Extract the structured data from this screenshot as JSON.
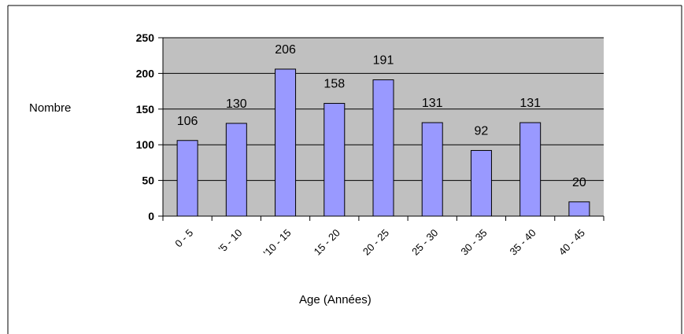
{
  "chart_data": {
    "type": "bar",
    "title": "",
    "ylabel": "Nombre",
    "xlabel": "Age (Années)",
    "categories": [
      "0 - 5",
      "'5 - 10",
      "'10 - 15",
      "15 - 20",
      "20 - 25",
      "25 - 30",
      "30 - 35",
      "35 - 40",
      "40 - 45"
    ],
    "values": [
      106,
      130,
      206,
      158,
      191,
      131,
      92,
      131,
      20
    ],
    "ylim": [
      0,
      250
    ],
    "yticks": [
      0,
      50,
      100,
      150,
      200,
      250
    ],
    "grid": true,
    "legend": "none",
    "data_labels": true,
    "colors": {
      "bar_fill": "#9999ff",
      "bar_stroke": "#000000",
      "plot_background": "#c0c0c0",
      "gridline": "#000000",
      "frame": "#000000"
    }
  }
}
